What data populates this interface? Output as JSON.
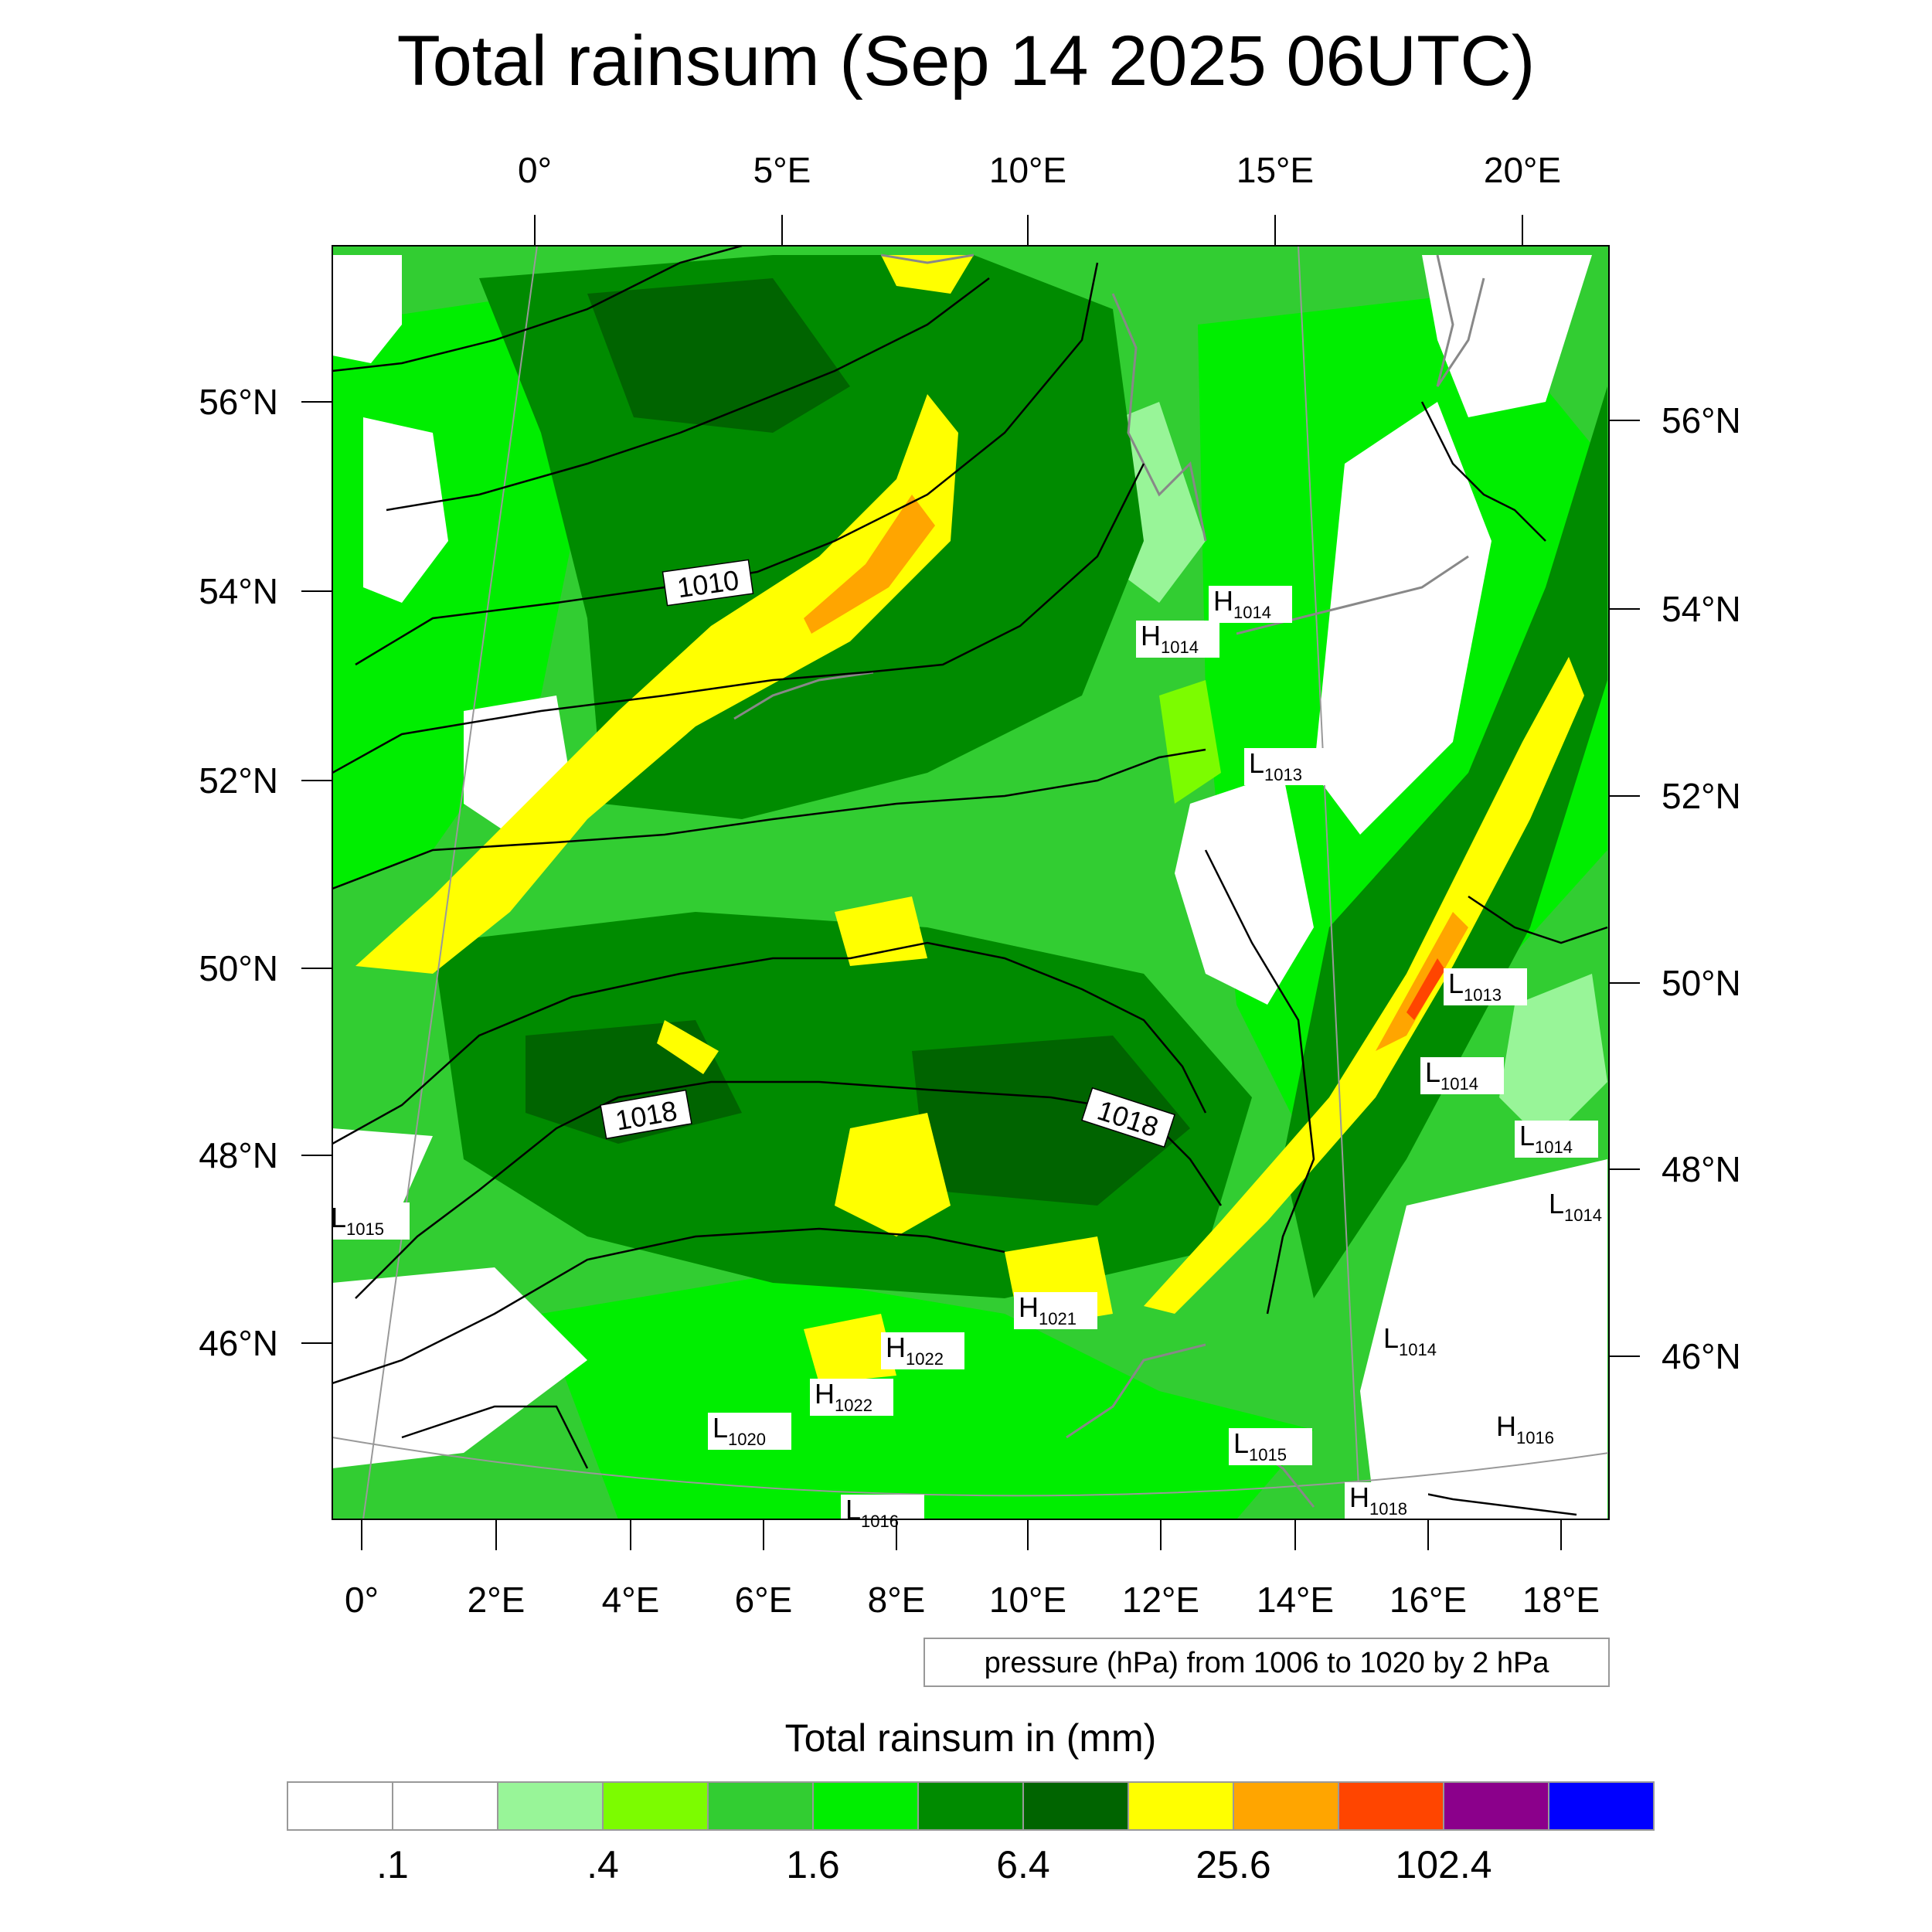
{
  "title": "Total rainsum (Sep 14 2025 06UTC)",
  "top_lon_labels": [
    "0°",
    "5°E",
    "10°E",
    "15°E",
    "20°E"
  ],
  "bottom_lon_labels": [
    "0°",
    "2°E",
    "4°E",
    "6°E",
    "8°E",
    "10°E",
    "12°E",
    "14°E",
    "16°E",
    "18°E"
  ],
  "left_lat_labels": [
    "56°N",
    "54°N",
    "52°N",
    "50°N",
    "48°N",
    "46°N"
  ],
  "right_lat_labels": [
    "56°N",
    "54°N",
    "52°N",
    "50°N",
    "48°N",
    "46°N"
  ],
  "contour_labels": [
    "1010",
    "1018",
    "1018"
  ],
  "pressure_centers": [
    {
      "type": "H",
      "value": "1014"
    },
    {
      "type": "H",
      "value": "1014"
    },
    {
      "type": "L",
      "value": "1013"
    },
    {
      "type": "L",
      "value": "1013"
    },
    {
      "type": "L",
      "value": "1014"
    },
    {
      "type": "L",
      "value": "1014"
    },
    {
      "type": "L",
      "value": "1014"
    },
    {
      "type": "L",
      "value": "1015"
    },
    {
      "type": "H",
      "value": "1021"
    },
    {
      "type": "H",
      "value": "1022"
    },
    {
      "type": "H",
      "value": "1022"
    },
    {
      "type": "L",
      "value": "1020"
    },
    {
      "type": "L",
      "value": "1016"
    },
    {
      "type": "L",
      "value": "1015"
    },
    {
      "type": "H",
      "value": "1016"
    },
    {
      "type": "H",
      "value": "1018"
    },
    {
      "type": "L",
      "value": "1014"
    }
  ],
  "pressure_note": "pressure (hPa) from 1006 to 1020 by 2 hPa",
  "colorbar": {
    "title": "Total rainsum in (mm)",
    "colors": [
      "#ffffff",
      "#ffffff",
      "#98f598",
      "#7cfc00",
      "#32cd32",
      "#00ee00",
      "#008b00",
      "#006400",
      "#ffff00",
      "#ffa500",
      "#ff4500",
      "#8b008b",
      "#0000ff"
    ],
    "tick_labels": [
      ".1",
      ".4",
      "1.6",
      "6.4",
      "25.6",
      "102.4"
    ]
  },
  "field_colors": {
    "white": "#ffffff",
    "lightgreen": "#98f598",
    "lawngreen": "#7cfc00",
    "green": "#32cd32",
    "brightgreen": "#00ee00",
    "darkgreen": "#008b00",
    "deepgreen": "#006400",
    "yellow": "#ffff00",
    "orange": "#ffa500",
    "red": "#ff4500"
  }
}
